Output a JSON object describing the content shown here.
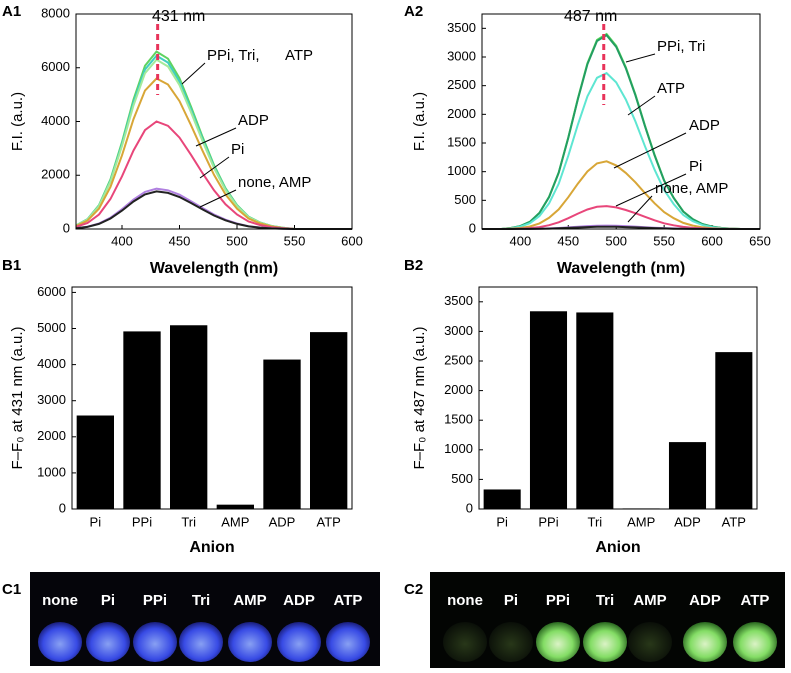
{
  "chart_data": [
    {
      "type": "line",
      "panel_label": "A1",
      "x_label": "Wavelength (nm)",
      "y_label": "F.I. (a.u.)",
      "x": [
        360,
        370,
        380,
        390,
        400,
        410,
        420,
        430,
        440,
        450,
        460,
        470,
        480,
        490,
        500,
        510,
        520,
        530,
        540,
        550,
        560,
        570,
        580,
        590,
        600
      ],
      "xlim": [
        360,
        600
      ],
      "xticks": [
        400,
        450,
        500,
        550,
        600
      ],
      "ylim": [
        0,
        8000
      ],
      "yticks": [
        0,
        2000,
        4000,
        6000,
        8000
      ],
      "series": [
        {
          "color": "#5fd35f",
          "values": [
            132,
            370,
            891,
            1848,
            3234,
            4818,
            6072,
            6600,
            6336,
            5610,
            4554,
            3432,
            2376,
            1518,
            891,
            462,
            244,
            112,
            46,
            0,
            0,
            0,
            0,
            0,
            0
          ]
        },
        {
          "color": "#3fcfc0",
          "values": [
            129,
            361,
            871,
            1806,
            3161,
            4709,
            5934,
            6450,
            6192,
            5483,
            4451,
            3354,
            2322,
            1484,
            871,
            452,
            239,
            110,
            45,
            0,
            0,
            0,
            0,
            0,
            0
          ]
        },
        {
          "color": "#a4ea9a",
          "values": [
            126,
            353,
            851,
            1764,
            3087,
            4599,
            5796,
            6300,
            6048,
            5355,
            4347,
            3276,
            2268,
            1449,
            851,
            441,
            233,
            107,
            44,
            0,
            0,
            0,
            0,
            0,
            0
          ]
        },
        {
          "color": "#d8a637",
          "values": [
            112,
            314,
            756,
            1568,
            2744,
            4088,
            5152,
            5600,
            5376,
            4760,
            3864,
            2912,
            2016,
            1288,
            756,
            392,
            207,
            95,
            39,
            0,
            0,
            0,
            0,
            0,
            0
          ]
        },
        {
          "color": "#e8467a",
          "values": [
            80,
            224,
            540,
            1120,
            1960,
            2920,
            3680,
            4000,
            3840,
            3400,
            2760,
            2080,
            1440,
            920,
            540,
            280,
            148,
            68,
            28,
            0,
            0,
            0,
            0,
            0,
            0
          ]
        },
        {
          "color": "#b080e0",
          "values": [
            30,
            84,
            203,
            420,
            735,
            1095,
            1380,
            1500,
            1440,
            1275,
            1035,
            780,
            540,
            345,
            203,
            105,
            56,
            26,
            11,
            0,
            0,
            0,
            0,
            0,
            0
          ]
        },
        {
          "color": "#222222",
          "values": [
            28,
            78,
            189,
            392,
            686,
            1022,
            1288,
            1400,
            1344,
            1190,
            966,
            728,
            504,
            322,
            189,
            98,
            52,
            24,
            10,
            0,
            0,
            0,
            0,
            0,
            0
          ]
        }
      ],
      "peak_marker": {
        "x": 431,
        "label": "431 nm",
        "color": "#e8335a"
      },
      "annotations": [
        {
          "text": "PPi, Tri,",
          "color": "#000000"
        },
        {
          "text": "ATP",
          "color": "#e8335a"
        },
        {
          "text": "ADP",
          "color": "#000000"
        },
        {
          "text": "Pi",
          "color": "#000000"
        },
        {
          "text": "none, AMP",
          "color": "#000000"
        }
      ]
    },
    {
      "type": "line",
      "panel_label": "A2",
      "x_label": "Wavelength (nm)",
      "y_label": "F.I. (a.u.)",
      "x": [
        360,
        370,
        380,
        390,
        400,
        410,
        420,
        430,
        440,
        450,
        460,
        470,
        480,
        490,
        500,
        510,
        520,
        530,
        540,
        550,
        560,
        570,
        580,
        590,
        600,
        610,
        620,
        630,
        640,
        650
      ],
      "xlim": [
        360,
        650
      ],
      "xticks": [
        400,
        450,
        500,
        550,
        600,
        650
      ],
      "ylim": [
        0,
        3750
      ],
      "yticks": [
        0,
        500,
        1000,
        1500,
        2000,
        2500,
        3000,
        3500
      ],
      "series": [
        {
          "color": "#58d858",
          "values": [
            0,
            0,
            0,
            17,
            51,
            126,
            282,
            561,
            986,
            1598,
            2278,
            2890,
            3298,
            3400,
            3196,
            2822,
            2346,
            1802,
            1292,
            850,
            544,
            306,
            170,
            85,
            41,
            17,
            7,
            0,
            0,
            0
          ]
        },
        {
          "color": "#239e62",
          "values": [
            0,
            0,
            0,
            17,
            51,
            125,
            281,
            558,
            980,
            1589,
            2265,
            2873,
            3279,
            3380,
            3177,
            2805,
            2332,
            1791,
            1284,
            845,
            541,
            304,
            169,
            85,
            41,
            17,
            7,
            0,
            0,
            0
          ]
        },
        {
          "color": "#5ee6d2",
          "values": [
            0,
            0,
            0,
            14,
            41,
            101,
            226,
            449,
            789,
            1278,
            1822,
            2312,
            2638,
            2720,
            2557,
            2258,
            1877,
            1442,
            1034,
            680,
            435,
            245,
            136,
            68,
            33,
            14,
            5,
            0,
            0,
            0
          ]
        },
        {
          "color": "#d8a637",
          "values": [
            0,
            0,
            0,
            6,
            18,
            44,
            98,
            195,
            342,
            555,
            791,
            1003,
            1145,
            1180,
            1109,
            979,
            814,
            625,
            448,
            295,
            189,
            106,
            59,
            30,
            14,
            6,
            2,
            0,
            0,
            0
          ]
        },
        {
          "color": "#e8467a",
          "values": [
            0,
            0,
            0,
            2,
            6,
            15,
            33,
            66,
            116,
            188,
            268,
            340,
            388,
            400,
            376,
            332,
            276,
            212,
            152,
            100,
            64,
            36,
            20,
            10,
            5,
            2,
            1,
            0,
            0,
            0
          ]
        },
        {
          "color": "#b080e0",
          "values": [
            0,
            0,
            0,
            0,
            1,
            2,
            5,
            10,
            17,
            28,
            40,
            51,
            58,
            60,
            56,
            50,
            41,
            32,
            23,
            15,
            10,
            5,
            3,
            2,
            1,
            0,
            0,
            0,
            0,
            0
          ]
        },
        {
          "color": "#222222",
          "values": [
            0,
            0,
            0,
            0,
            1,
            1,
            3,
            7,
            12,
            19,
            27,
            34,
            39,
            40,
            38,
            33,
            28,
            21,
            15,
            10,
            6,
            4,
            2,
            1,
            0,
            0,
            0,
            0,
            0,
            0
          ]
        }
      ],
      "peak_marker": {
        "x": 487,
        "label": "487 nm",
        "color": "#e8335a"
      },
      "annotations": [
        {
          "text": "PPi, Tri",
          "color": "#000000"
        },
        {
          "text": "ATP",
          "color": "#e8335a"
        },
        {
          "text": "ADP",
          "color": "#000000"
        },
        {
          "text": "Pi",
          "color": "#000000"
        },
        {
          "text": "none, AMP",
          "color": "#000000"
        }
      ]
    },
    {
      "type": "bar",
      "panel_label": "B1",
      "x_label": "Anion",
      "y_label": "F–F₀ at 431 nm (a.u.)",
      "categories": [
        "Pi",
        "PPi",
        "Tri",
        "AMP",
        "ADP",
        "ATP"
      ],
      "values": [
        2590,
        4920,
        5090,
        120,
        4140,
        4900
      ],
      "color": "#000000",
      "ylim": [
        0,
        6150
      ],
      "yticks": [
        0,
        1000,
        2000,
        3000,
        4000,
        5000,
        6000
      ]
    },
    {
      "type": "bar",
      "panel_label": "B2",
      "x_label": "Anion",
      "y_label": "F–F₀ at 487 nm (a.u.)",
      "categories": [
        "Pi",
        "PPi",
        "Tri",
        "AMP",
        "ADP",
        "ATP"
      ],
      "values": [
        330,
        3340,
        3320,
        10,
        1130,
        2650
      ],
      "color": "#000000",
      "ylim": [
        0,
        3750
      ],
      "yticks": [
        0,
        500,
        1000,
        1500,
        2000,
        2500,
        3000,
        3500
      ]
    }
  ],
  "photo_panels": [
    {
      "panel_label": "C1",
      "labels": [
        "none",
        "Pi",
        "PPi",
        "Tri",
        "AMP",
        "ADP",
        "ATP"
      ]
    },
    {
      "panel_label": "C2",
      "labels": [
        "none",
        "Pi",
        "PPi",
        "Tri",
        "AMP",
        "ADP",
        "ATP"
      ]
    }
  ]
}
